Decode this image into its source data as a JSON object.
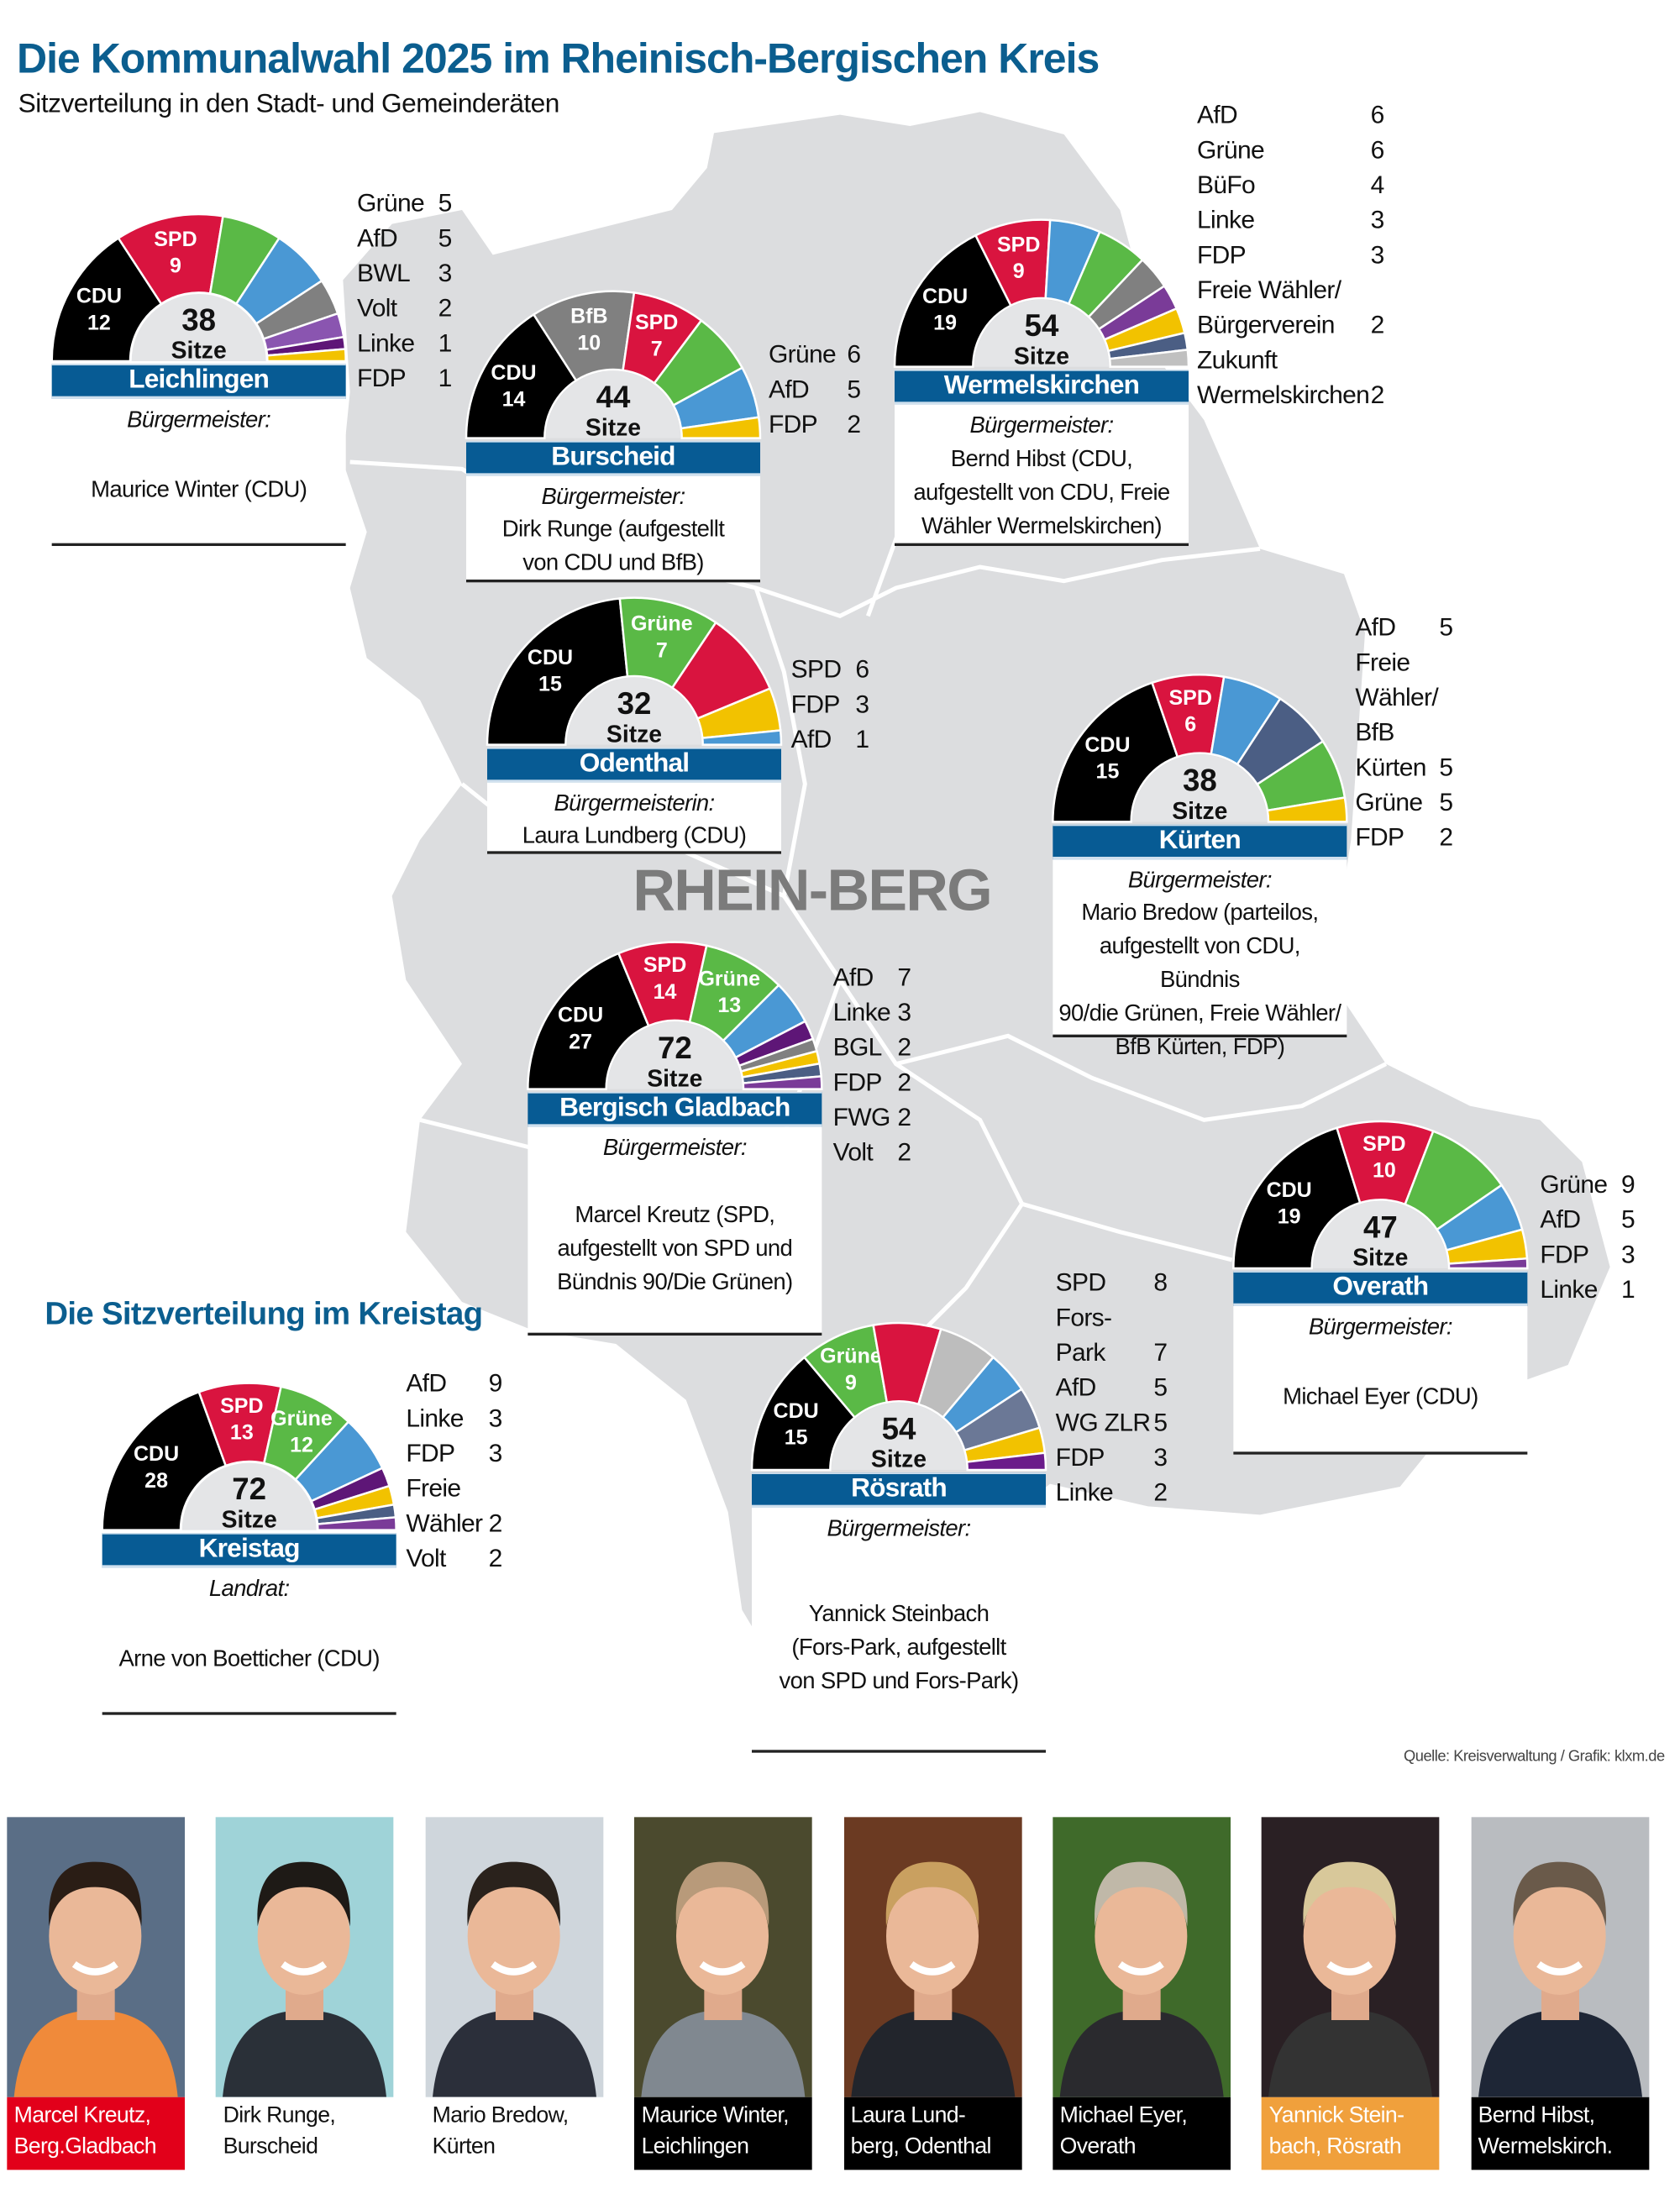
{
  "header": {
    "title": "Die Kommunalwahl 2025 im Rheinisch-Bergischen Kreis",
    "subtitle": "Sitzverteilung in den Stadt- und Gemeinderäten"
  },
  "map_label": "RHEIN-BERG",
  "kreistag_heading": "Die Sitzverteilung im Kreistag",
  "source": "Quelle: Kreisverwaltung / Grafik: klxm.de",
  "seats_label": "Sitze",
  "chart_data": [
    {
      "type": "pie",
      "shape": "semicircle",
      "title": "Leichlingen",
      "total": 38,
      "office_label": "Bürgermeister:",
      "office_holder": "Maurice Winter (CDU)",
      "parties": [
        {
          "name": "CDU",
          "seats": 12,
          "color": "#000000",
          "in_chart": true
        },
        {
          "name": "SPD",
          "seats": 9,
          "color": "#d9143f",
          "in_chart": true
        },
        {
          "name": "Grüne",
          "seats": 5,
          "color": "#5ab946"
        },
        {
          "name": "AfD",
          "seats": 5,
          "color": "#4a98d4"
        },
        {
          "name": "BWL",
          "seats": 3,
          "color": "#808080"
        },
        {
          "name": "Volt",
          "seats": 2,
          "color": "#8a55b0"
        },
        {
          "name": "Linke",
          "seats": 1,
          "color": "#5e1677"
        },
        {
          "name": "FDP",
          "seats": 1,
          "color": "#f2c200"
        }
      ]
    },
    {
      "type": "pie",
      "shape": "semicircle",
      "title": "Burscheid",
      "total": 44,
      "office_label": "Bürgermeister:",
      "office_holder": "Dirk Runge (aufgestellt\nvon CDU und BfB)",
      "parties": [
        {
          "name": "CDU",
          "seats": 14,
          "color": "#000000",
          "in_chart": true
        },
        {
          "name": "BfB",
          "seats": 10,
          "color": "#808080",
          "in_chart": true
        },
        {
          "name": "SPD",
          "seats": 7,
          "color": "#d9143f",
          "in_chart": true
        },
        {
          "name": "Grüne",
          "seats": 6,
          "color": "#5ab946"
        },
        {
          "name": "AfD",
          "seats": 5,
          "color": "#4a98d4"
        },
        {
          "name": "FDP",
          "seats": 2,
          "color": "#f2c200"
        }
      ]
    },
    {
      "type": "pie",
      "shape": "semicircle",
      "title": "Wermelskirchen",
      "total": 54,
      "office_label": "Bürgermeister:",
      "office_holder": "Bernd Hibst (CDU,\naufgestellt von CDU, Freie\nWähler Wermelskirchen)",
      "parties": [
        {
          "name": "CDU",
          "seats": 19,
          "color": "#000000",
          "in_chart": true
        },
        {
          "name": "SPD",
          "seats": 9,
          "color": "#d9143f",
          "in_chart": true
        },
        {
          "name": "AfD",
          "seats": 6,
          "color": "#4a98d4"
        },
        {
          "name": "Grüne",
          "seats": 6,
          "color": "#5ab946"
        },
        {
          "name": "BüFo",
          "seats": 4,
          "color": "#808080"
        },
        {
          "name": "Linke",
          "seats": 3,
          "color": "#7a3b98"
        },
        {
          "name": "FDP",
          "seats": 3,
          "color": "#f2c200"
        },
        {
          "name": "Freie Wähler/\nBürgerverein",
          "seats": 2,
          "color": "#4b5e84"
        },
        {
          "name": "Zukunft\nWermelskirchen",
          "seats": 2,
          "color": "#c0c0c0"
        }
      ]
    },
    {
      "type": "pie",
      "shape": "semicircle",
      "title": "Odenthal",
      "total": 32,
      "office_label": "Bürgermeisterin:",
      "office_holder": "Laura Lundberg (CDU)",
      "parties": [
        {
          "name": "CDU",
          "seats": 15,
          "color": "#000000",
          "in_chart": true
        },
        {
          "name": "Grüne",
          "seats": 7,
          "color": "#5ab946",
          "in_chart": true
        },
        {
          "name": "SPD",
          "seats": 6,
          "color": "#d9143f"
        },
        {
          "name": "FDP",
          "seats": 3,
          "color": "#f2c200"
        },
        {
          "name": "AfD",
          "seats": 1,
          "color": "#4a98d4"
        }
      ]
    },
    {
      "type": "pie",
      "shape": "semicircle",
      "title": "Kürten",
      "total": 38,
      "office_label": "Bürgermeister:",
      "office_holder": "Mario Bredow (parteilos,\naufgestellt von CDU, Bündnis\n90/die Grünen, Freie Wähler/\nBfB Kürten, FDP)",
      "parties": [
        {
          "name": "CDU",
          "seats": 15,
          "color": "#000000",
          "in_chart": true
        },
        {
          "name": "SPD",
          "seats": 6,
          "color": "#d9143f",
          "in_chart": true
        },
        {
          "name": "AfD",
          "seats": 5,
          "color": "#4a98d4"
        },
        {
          "name": "Freie\nWähler/\nBfB\nKürten",
          "seats": 5,
          "color": "#4b5e84"
        },
        {
          "name": "Grüne",
          "seats": 5,
          "color": "#5ab946"
        },
        {
          "name": "FDP",
          "seats": 2,
          "color": "#f2c200"
        }
      ]
    },
    {
      "type": "pie",
      "shape": "semicircle",
      "title": "Bergisch Gladbach",
      "total": 72,
      "office_label": "Bürgermeister:",
      "office_holder": "Marcel Kreutz (SPD,\naufgestellt von SPD und\nBündnis 90/Die Grünen)",
      "parties": [
        {
          "name": "CDU",
          "seats": 27,
          "color": "#000000",
          "in_chart": true
        },
        {
          "name": "SPD",
          "seats": 14,
          "color": "#d9143f",
          "in_chart": true
        },
        {
          "name": "Grüne",
          "seats": 13,
          "color": "#5ab946",
          "in_chart": true
        },
        {
          "name": "AfD",
          "seats": 7,
          "color": "#4a98d4"
        },
        {
          "name": "Linke",
          "seats": 3,
          "color": "#5e1677"
        },
        {
          "name": "BGL",
          "seats": 2,
          "color": "#808080"
        },
        {
          "name": "FDP",
          "seats": 2,
          "color": "#f2c200"
        },
        {
          "name": "FWG",
          "seats": 2,
          "color": "#4b5e84"
        },
        {
          "name": "Volt",
          "seats": 2,
          "color": "#7a3b98"
        }
      ]
    },
    {
      "type": "pie",
      "shape": "semicircle",
      "title": "Overath",
      "total": 47,
      "office_label": "Bürgermeister:",
      "office_holder": "Michael Eyer (CDU)",
      "parties": [
        {
          "name": "CDU",
          "seats": 19,
          "color": "#000000",
          "in_chart": true
        },
        {
          "name": "SPD",
          "seats": 10,
          "color": "#d9143f",
          "in_chart": true
        },
        {
          "name": "Grüne",
          "seats": 9,
          "color": "#5ab946"
        },
        {
          "name": "AfD",
          "seats": 5,
          "color": "#4a98d4"
        },
        {
          "name": "FDP",
          "seats": 3,
          "color": "#f2c200"
        },
        {
          "name": "Linke",
          "seats": 1,
          "color": "#7a3b98"
        }
      ]
    },
    {
      "type": "pie",
      "shape": "semicircle",
      "title": "Rösrath",
      "total": 54,
      "office_label": "Bürgermeister:",
      "office_holder": "Yannick Steinbach\n(Fors-Park, aufgestellt\nvon SPD und Fors-Park)",
      "parties": [
        {
          "name": "CDU",
          "seats": 15,
          "color": "#000000",
          "in_chart": true
        },
        {
          "name": "Grüne",
          "seats": 9,
          "color": "#5ab946",
          "in_chart": true
        },
        {
          "name": "SPD",
          "seats": 8,
          "color": "#d9143f"
        },
        {
          "name": "Fors-Park",
          "seats": 7,
          "color": "#bdbdbd"
        },
        {
          "name": "AfD",
          "seats": 5,
          "color": "#4a98d4"
        },
        {
          "name": "WG ZLR",
          "seats": 5,
          "color": "#6b7896"
        },
        {
          "name": "FDP",
          "seats": 3,
          "color": "#f2c200"
        },
        {
          "name": "Linke",
          "seats": 2,
          "color": "#6a1b8a"
        }
      ]
    },
    {
      "type": "pie",
      "shape": "semicircle",
      "title": "Kreistag",
      "total": 72,
      "office_label": "Landrat:",
      "office_holder": "Arne von Boetticher (CDU)",
      "parties": [
        {
          "name": "CDU",
          "seats": 28,
          "color": "#000000",
          "in_chart": true
        },
        {
          "name": "SPD",
          "seats": 13,
          "color": "#d9143f",
          "in_chart": true
        },
        {
          "name": "Grüne",
          "seats": 12,
          "color": "#5ab946",
          "in_chart": true
        },
        {
          "name": "AfD",
          "seats": 9,
          "color": "#4a98d4"
        },
        {
          "name": "Linke",
          "seats": 3,
          "color": "#5e1677"
        },
        {
          "name": "FDP",
          "seats": 3,
          "color": "#f2c200"
        },
        {
          "name": "Freie\nWähler",
          "seats": 2,
          "color": "#4b5e84"
        },
        {
          "name": "Volt",
          "seats": 2,
          "color": "#7a3b98"
        }
      ]
    }
  ],
  "portraits": [
    {
      "caption": "Marcel Kreutz,\nBerg.Gladbach",
      "caption_bg": "#e2001a",
      "caption_color": "#ffffff"
    },
    {
      "caption": "Dirk Runge,\nBurscheid",
      "caption_bg": "#ffffff",
      "caption_color": "#111111"
    },
    {
      "caption": "Mario Bredow,\nKürten",
      "caption_bg": "#ffffff",
      "caption_color": "#111111"
    },
    {
      "caption": "Maurice Winter,\nLeichlingen",
      "caption_bg": "#000000",
      "caption_color": "#ffffff"
    },
    {
      "caption": "Laura Lund-\nberg, Odenthal",
      "caption_bg": "#000000",
      "caption_color": "#ffffff"
    },
    {
      "caption": "Michael Eyer,\nOverath",
      "caption_bg": "#000000",
      "caption_color": "#ffffff"
    },
    {
      "caption": "Yannick Stein-\nbach, Rösrath",
      "caption_bg": "#f0a03c",
      "caption_color": "#ffffff"
    },
    {
      "caption": "Bernd Hibst,\nWermelskirch.",
      "caption_bg": "#000000",
      "caption_color": "#ffffff"
    }
  ]
}
